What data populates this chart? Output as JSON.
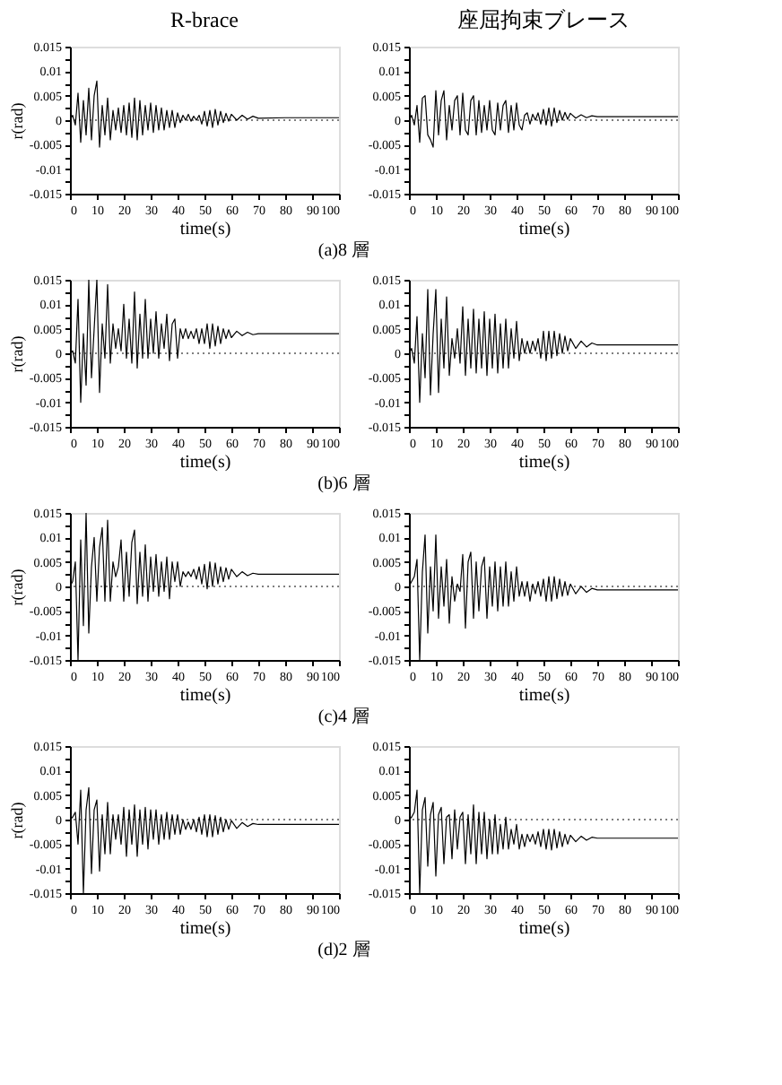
{
  "chart_data": [
    {
      "type": "line",
      "title": "R-brace",
      "xlabel": "time(s)",
      "ylabel": "r(rad)",
      "annotations": [
        "(a)8 層"
      ],
      "x": [
        0,
        1,
        2,
        3,
        4,
        5,
        6,
        7,
        8,
        9,
        10,
        11,
        12,
        13,
        14,
        15,
        16,
        17,
        18,
        19,
        20,
        21,
        22,
        23,
        24,
        25,
        26,
        27,
        28,
        29,
        30,
        31,
        32,
        33,
        34,
        35,
        36,
        37,
        38,
        39,
        40,
        41,
        42,
        43,
        44,
        45,
        46,
        47,
        48,
        49,
        50,
        51,
        52,
        53,
        54,
        55,
        56,
        57,
        58,
        59,
        60,
        62,
        64,
        66,
        68,
        70,
        80,
        90,
        100
      ],
      "series": [
        {
          "color": "#000000",
          "values": [
            0,
            0.001,
            -0.001,
            0.0055,
            -0.0045,
            0.004,
            -0.003,
            0.0065,
            -0.004,
            0.005,
            0.008,
            -0.0055,
            0.003,
            -0.003,
            0.0045,
            -0.004,
            0.002,
            -0.002,
            0.0025,
            -0.0025,
            0.003,
            -0.003,
            0.0035,
            -0.0035,
            0.0045,
            -0.004,
            0.004,
            -0.003,
            0.003,
            -0.002,
            0.0035,
            -0.0025,
            0.003,
            -0.002,
            0.0025,
            -0.002,
            0.002,
            -0.0015,
            0.002,
            -0.0015,
            0.0015,
            -0.0005,
            0.001,
            0,
            0.0012,
            -0.0002,
            0.0008,
            0,
            0.001,
            -0.0008,
            0.0018,
            -0.0012,
            0.002,
            -0.0015,
            0.0022,
            -0.001,
            0.0018,
            -0.0005,
            0.0014,
            -0.0002,
            0.0012,
            0,
            0.001,
            0.0002,
            0.0008,
            0.0004,
            0.0005,
            0.0005,
            0.0005
          ]
        }
      ],
      "xlim": [
        0,
        100
      ],
      "ylim": [
        -0.015,
        0.015
      ],
      "xticks": [
        0,
        10,
        20,
        30,
        40,
        50,
        60,
        70,
        80,
        90,
        100
      ],
      "yticks": [
        -0.015,
        {
          "value": -0.0125,
          "label": null
        },
        -0.01,
        {
          "value": -0.0075,
          "label": null
        },
        -0.005,
        {
          "value": -0.0025,
          "label": null
        },
        0,
        {
          "value": 0.0025,
          "label": null
        },
        0.005,
        {
          "value": 0.0075,
          "label": null
        },
        0.01,
        {
          "value": 0.0125,
          "label": null
        },
        0.015
      ],
      "ref_lines": [
        {
          "axis": "y",
          "value": 0,
          "line_style": "dotted"
        }
      ]
    },
    {
      "type": "line",
      "title": "座屈拘束ブレース",
      "xlabel": "time(s)",
      "x": [
        0,
        1,
        2,
        3,
        4,
        5,
        6,
        7,
        8,
        9,
        10,
        11,
        12,
        13,
        14,
        15,
        16,
        17,
        18,
        19,
        20,
        21,
        22,
        23,
        24,
        25,
        26,
        27,
        28,
        29,
        30,
        31,
        32,
        33,
        34,
        35,
        36,
        37,
        38,
        39,
        40,
        41,
        42,
        43,
        44,
        45,
        46,
        47,
        48,
        49,
        50,
        51,
        52,
        53,
        54,
        55,
        56,
        57,
        58,
        59,
        60,
        62,
        64,
        66,
        68,
        70,
        80,
        90,
        100
      ],
      "series": [
        {
          "color": "#000000",
          "values": [
            0,
            0.001,
            -0.001,
            0.003,
            -0.0045,
            0.0045,
            0.005,
            -0.003,
            -0.004,
            -0.0055,
            0.006,
            -0.003,
            0.004,
            0.006,
            -0.004,
            0.003,
            -0.002,
            0.004,
            0.005,
            -0.003,
            0.0055,
            -0.002,
            -0.003,
            0.004,
            0.005,
            -0.003,
            0.004,
            -0.0025,
            0.003,
            -0.002,
            0.004,
            -0.002,
            -0.003,
            0.0035,
            -0.002,
            0.003,
            0.004,
            -0.0025,
            0.003,
            -0.002,
            0.0035,
            -0.001,
            -0.002,
            0.001,
            0.0015,
            -0.0008,
            0.0012,
            0,
            0.0015,
            -0.0008,
            0.0022,
            -0.001,
            0.0025,
            -0.0012,
            0.0025,
            -0.0005,
            0.002,
            0,
            0.0016,
            0.0002,
            0.0014,
            0.0004,
            0.0011,
            0.0005,
            0.0009,
            0.0007,
            0.0007,
            0.0007,
            0.0007
          ]
        }
      ],
      "xlim": [
        0,
        100
      ],
      "ylim": [
        -0.015,
        0.015
      ],
      "xticks": [
        0,
        10,
        20,
        30,
        40,
        50,
        60,
        70,
        80,
        90,
        100
      ],
      "yticks": [
        -0.015,
        {
          "value": -0.0125,
          "label": null
        },
        -0.01,
        {
          "value": -0.0075,
          "label": null
        },
        -0.005,
        {
          "value": -0.0025,
          "label": null
        },
        0,
        {
          "value": 0.0025,
          "label": null
        },
        0.005,
        {
          "value": 0.0075,
          "label": null
        },
        0.01,
        {
          "value": 0.0125,
          "label": null
        },
        0.015
      ],
      "ref_lines": [
        {
          "axis": "y",
          "value": 0,
          "line_style": "dotted"
        }
      ]
    },
    {
      "type": "line",
      "xlabel": "time(s)",
      "ylabel": "r(rad)",
      "annotations": [
        "(b)6 層"
      ],
      "x": [
        0,
        1,
        2,
        3,
        4,
        5,
        6,
        7,
        8,
        9,
        10,
        11,
        12,
        13,
        14,
        15,
        16,
        17,
        18,
        19,
        20,
        21,
        22,
        23,
        24,
        25,
        26,
        27,
        28,
        29,
        30,
        31,
        32,
        33,
        34,
        35,
        36,
        37,
        38,
        39,
        40,
        41,
        42,
        43,
        44,
        45,
        46,
        47,
        48,
        49,
        50,
        51,
        52,
        53,
        54,
        55,
        56,
        57,
        58,
        59,
        60,
        62,
        64,
        66,
        68,
        70,
        80,
        90,
        100
      ],
      "series": [
        {
          "color": "#000000",
          "values": [
            0,
            0.0005,
            -0.002,
            0.011,
            -0.01,
            0.004,
            -0.0065,
            0.015,
            -0.005,
            0.005,
            0.015,
            -0.008,
            0.006,
            -0.001,
            0.014,
            -0.002,
            0.006,
            0.001,
            0.005,
            0.0005,
            0.01,
            -0.001,
            0.007,
            -0.002,
            0.0125,
            -0.003,
            0.008,
            -0.001,
            0.011,
            -0.001,
            0.007,
            0,
            0.0085,
            -0.001,
            0.006,
            0.001,
            0.008,
            -0.0015,
            0.006,
            0.007,
            -0.001,
            0.005,
            0.003,
            0.005,
            0.003,
            0.0045,
            0.003,
            0.005,
            0.002,
            0.005,
            0.002,
            0.006,
            0.001,
            0.006,
            0.0015,
            0.0055,
            0.002,
            0.005,
            0.003,
            0.0048,
            0.0032,
            0.0045,
            0.0036,
            0.0043,
            0.0038,
            0.004,
            0.004,
            0.004,
            0.004
          ]
        }
      ],
      "xlim": [
        0,
        100
      ],
      "ylim": [
        -0.015,
        0.015
      ],
      "xticks": [
        0,
        10,
        20,
        30,
        40,
        50,
        60,
        70,
        80,
        90,
        100
      ],
      "yticks": [
        -0.015,
        {
          "value": -0.0125,
          "label": null
        },
        -0.01,
        {
          "value": -0.0075,
          "label": null
        },
        -0.005,
        {
          "value": -0.0025,
          "label": null
        },
        0,
        {
          "value": 0.0025,
          "label": null
        },
        0.005,
        {
          "value": 0.0075,
          "label": null
        },
        0.01,
        {
          "value": 0.0125,
          "label": null
        },
        0.015
      ],
      "ref_lines": [
        {
          "axis": "y",
          "value": 0,
          "line_style": "dotted"
        }
      ]
    },
    {
      "type": "line",
      "xlabel": "time(s)",
      "x": [
        0,
        1,
        2,
        3,
        4,
        5,
        6,
        7,
        8,
        9,
        10,
        11,
        12,
        13,
        14,
        15,
        16,
        17,
        18,
        19,
        20,
        21,
        22,
        23,
        24,
        25,
        26,
        27,
        28,
        29,
        30,
        31,
        32,
        33,
        34,
        35,
        36,
        37,
        38,
        39,
        40,
        41,
        42,
        43,
        44,
        45,
        46,
        47,
        48,
        49,
        50,
        51,
        52,
        53,
        54,
        55,
        56,
        57,
        58,
        59,
        60,
        62,
        64,
        66,
        68,
        70,
        80,
        90,
        100
      ],
      "series": [
        {
          "color": "#000000",
          "values": [
            0,
            0.001,
            -0.002,
            0.0075,
            -0.01,
            0.004,
            -0.005,
            0.013,
            -0.0085,
            0.004,
            0.013,
            -0.008,
            0.007,
            -0.003,
            0.0115,
            -0.0045,
            0.003,
            -0.001,
            0.005,
            -0.002,
            0.0095,
            -0.0045,
            0.007,
            -0.003,
            0.009,
            -0.004,
            0.007,
            -0.003,
            0.0085,
            -0.0045,
            0.007,
            -0.003,
            0.008,
            -0.004,
            0.006,
            -0.003,
            0.007,
            -0.003,
            0.005,
            -0.001,
            0.0065,
            -0.0015,
            0.003,
            0,
            0.0025,
            0,
            0.0025,
            0.0005,
            0.003,
            -0.001,
            0.0045,
            -0.0015,
            0.0045,
            -0.001,
            0.0045,
            -0.0005,
            0.004,
            0,
            0.0035,
            0.0005,
            0.003,
            0.001,
            0.0025,
            0.0013,
            0.0021,
            0.0017,
            0.0017,
            0.0017,
            0.0017
          ]
        }
      ],
      "xlim": [
        0,
        100
      ],
      "ylim": [
        -0.015,
        0.015
      ],
      "xticks": [
        0,
        10,
        20,
        30,
        40,
        50,
        60,
        70,
        80,
        90,
        100
      ],
      "yticks": [
        -0.015,
        {
          "value": -0.0125,
          "label": null
        },
        -0.01,
        {
          "value": -0.0075,
          "label": null
        },
        -0.005,
        {
          "value": -0.0025,
          "label": null
        },
        0,
        {
          "value": 0.0025,
          "label": null
        },
        0.005,
        {
          "value": 0.0075,
          "label": null
        },
        0.01,
        {
          "value": 0.0125,
          "label": null
        },
        0.015
      ],
      "ref_lines": [
        {
          "axis": "y",
          "value": 0,
          "line_style": "dotted"
        }
      ]
    },
    {
      "type": "line",
      "xlabel": "time(s)",
      "ylabel": "r(rad)",
      "annotations": [
        "(c)4 層"
      ],
      "x": [
        0,
        1,
        2,
        3,
        4,
        5,
        6,
        7,
        8,
        9,
        10,
        11,
        12,
        13,
        14,
        15,
        16,
        17,
        18,
        19,
        20,
        21,
        22,
        23,
        24,
        25,
        26,
        27,
        28,
        29,
        30,
        31,
        32,
        33,
        34,
        35,
        36,
        37,
        38,
        39,
        40,
        41,
        42,
        43,
        44,
        45,
        46,
        47,
        48,
        49,
        50,
        51,
        52,
        53,
        54,
        55,
        56,
        57,
        58,
        59,
        60,
        62,
        64,
        66,
        68,
        70,
        80,
        90,
        100
      ],
      "series": [
        {
          "color": "#000000",
          "values": [
            0,
            0.001,
            0.005,
            -0.015,
            0.0095,
            -0.008,
            0.015,
            -0.0095,
            0.004,
            0.01,
            -0.003,
            0.008,
            0.012,
            -0.003,
            0.0135,
            -0.003,
            0.005,
            0.002,
            0.004,
            0.0095,
            -0.003,
            0.007,
            -0.002,
            0.009,
            0.0115,
            -0.0035,
            0.007,
            -0.002,
            0.0085,
            -0.003,
            0.006,
            -0.001,
            0.0065,
            -0.002,
            0.005,
            -0.001,
            0.006,
            -0.0025,
            0.005,
            0.001,
            0.005,
            0,
            0.003,
            0.002,
            0.003,
            0.002,
            0.0035,
            0.0015,
            0.004,
            0.0005,
            0.0045,
            -0.0005,
            0.005,
            0,
            0.0048,
            0.0005,
            0.004,
            0.001,
            0.0038,
            0.0015,
            0.0035,
            0.002,
            0.003,
            0.0022,
            0.0027,
            0.0025,
            0.0025,
            0.0025,
            0.0025
          ]
        }
      ],
      "xlim": [
        0,
        100
      ],
      "ylim": [
        -0.015,
        0.015
      ],
      "xticks": [
        0,
        10,
        20,
        30,
        40,
        50,
        60,
        70,
        80,
        90,
        100
      ],
      "yticks": [
        -0.015,
        {
          "value": -0.0125,
          "label": null
        },
        -0.01,
        {
          "value": -0.0075,
          "label": null
        },
        -0.005,
        {
          "value": -0.0025,
          "label": null
        },
        0,
        {
          "value": 0.0025,
          "label": null
        },
        0.005,
        {
          "value": 0.0075,
          "label": null
        },
        0.01,
        {
          "value": 0.0125,
          "label": null
        },
        0.015
      ],
      "ref_lines": [
        {
          "axis": "y",
          "value": 0,
          "line_style": "dotted"
        }
      ]
    },
    {
      "type": "line",
      "xlabel": "time(s)",
      "x": [
        0,
        1,
        2,
        3,
        4,
        5,
        6,
        7,
        8,
        9,
        10,
        11,
        12,
        13,
        14,
        15,
        16,
        17,
        18,
        19,
        20,
        21,
        22,
        23,
        24,
        25,
        26,
        27,
        28,
        29,
        30,
        31,
        32,
        33,
        34,
        35,
        36,
        37,
        38,
        39,
        40,
        41,
        42,
        43,
        44,
        45,
        46,
        47,
        48,
        49,
        50,
        51,
        52,
        53,
        54,
        55,
        56,
        57,
        58,
        59,
        60,
        62,
        64,
        66,
        68,
        70,
        80,
        90,
        100
      ],
      "series": [
        {
          "color": "#000000",
          "values": [
            0,
            0.001,
            0.002,
            0.0055,
            -0.015,
            0.003,
            0.0105,
            -0.0095,
            0.004,
            -0.005,
            0.0105,
            -0.0065,
            0.004,
            -0.004,
            0.0055,
            -0.0075,
            0.002,
            -0.003,
            0.0005,
            -0.001,
            0.0065,
            -0.0085,
            0.005,
            0.007,
            -0.0065,
            0.005,
            -0.005,
            0.004,
            0.006,
            -0.0065,
            0.004,
            -0.004,
            0.005,
            -0.005,
            0.004,
            -0.004,
            0.005,
            -0.004,
            0.003,
            -0.003,
            0.004,
            -0.002,
            0.001,
            -0.002,
            0.001,
            -0.003,
            0.0005,
            -0.0015,
            0.001,
            -0.002,
            0.0015,
            -0.003,
            0.002,
            -0.003,
            0.002,
            -0.0025,
            0.0015,
            -0.002,
            0.001,
            -0.0018,
            0.0005,
            -0.0015,
            0,
            -0.0012,
            -0.0004,
            -0.0007,
            -0.0007,
            -0.0007,
            -0.0007
          ]
        }
      ],
      "xlim": [
        0,
        100
      ],
      "ylim": [
        -0.015,
        0.015
      ],
      "xticks": [
        0,
        10,
        20,
        30,
        40,
        50,
        60,
        70,
        80,
        90,
        100
      ],
      "yticks": [
        -0.015,
        {
          "value": -0.0125,
          "label": null
        },
        -0.01,
        {
          "value": -0.0075,
          "label": null
        },
        -0.005,
        {
          "value": -0.0025,
          "label": null
        },
        0,
        {
          "value": 0.0025,
          "label": null
        },
        0.005,
        {
          "value": 0.0075,
          "label": null
        },
        0.01,
        {
          "value": 0.0125,
          "label": null
        },
        0.015
      ],
      "ref_lines": [
        {
          "axis": "y",
          "value": 0,
          "line_style": "dotted"
        }
      ]
    },
    {
      "type": "line",
      "xlabel": "time(s)",
      "ylabel": "r(rad)",
      "annotations": [
        "(d)2 層"
      ],
      "x": [
        0,
        1,
        2,
        3,
        4,
        5,
        6,
        7,
        8,
        9,
        10,
        11,
        12,
        13,
        14,
        15,
        16,
        17,
        18,
        19,
        20,
        21,
        22,
        23,
        24,
        25,
        26,
        27,
        28,
        29,
        30,
        31,
        32,
        33,
        34,
        35,
        36,
        37,
        38,
        39,
        40,
        41,
        42,
        43,
        44,
        45,
        46,
        47,
        48,
        49,
        50,
        51,
        52,
        53,
        54,
        55,
        56,
        57,
        58,
        59,
        60,
        62,
        64,
        66,
        68,
        70,
        80,
        90,
        100
      ],
      "series": [
        {
          "color": "#000000",
          "values": [
            0,
            0.0005,
            0.0015,
            -0.005,
            0.006,
            -0.015,
            0.002,
            0.0065,
            -0.011,
            0.002,
            0.004,
            -0.0105,
            0.001,
            -0.007,
            0.0035,
            -0.007,
            0.001,
            -0.004,
            0.001,
            -0.005,
            0.0025,
            -0.0075,
            0.002,
            -0.005,
            0.003,
            -0.0075,
            0.002,
            -0.005,
            0.0025,
            -0.006,
            0.002,
            -0.004,
            0.002,
            -0.005,
            0.001,
            -0.004,
            0.0015,
            -0.004,
            0.001,
            -0.003,
            0.001,
            -0.003,
            0,
            -0.002,
            -0.0005,
            -0.002,
            0,
            -0.0025,
            0.0005,
            -0.003,
            0.001,
            -0.0035,
            0.001,
            -0.0035,
            0.0008,
            -0.003,
            0.0005,
            -0.0025,
            0,
            -0.002,
            -0.0002,
            -0.0018,
            -0.0006,
            -0.0014,
            -0.0008,
            -0.001,
            -0.001,
            -0.001,
            -0.001
          ]
        }
      ],
      "xlim": [
        0,
        100
      ],
      "ylim": [
        -0.015,
        0.015
      ],
      "xticks": [
        0,
        10,
        20,
        30,
        40,
        50,
        60,
        70,
        80,
        90,
        100
      ],
      "yticks": [
        -0.015,
        {
          "value": -0.0125,
          "label": null
        },
        -0.01,
        {
          "value": -0.0075,
          "label": null
        },
        -0.005,
        {
          "value": -0.0025,
          "label": null
        },
        0,
        {
          "value": 0.0025,
          "label": null
        },
        0.005,
        {
          "value": 0.0075,
          "label": null
        },
        0.01,
        {
          "value": 0.0125,
          "label": null
        },
        0.015
      ],
      "ref_lines": [
        {
          "axis": "y",
          "value": 0,
          "line_style": "dotted"
        }
      ]
    },
    {
      "type": "line",
      "xlabel": "time(s)",
      "x": [
        0,
        1,
        2,
        3,
        4,
        5,
        6,
        7,
        8,
        9,
        10,
        11,
        12,
        13,
        14,
        15,
        16,
        17,
        18,
        19,
        20,
        21,
        22,
        23,
        24,
        25,
        26,
        27,
        28,
        29,
        30,
        31,
        32,
        33,
        34,
        35,
        36,
        37,
        38,
        39,
        40,
        41,
        42,
        43,
        44,
        45,
        46,
        47,
        48,
        49,
        50,
        51,
        52,
        53,
        54,
        55,
        56,
        57,
        58,
        59,
        60,
        62,
        64,
        66,
        68,
        70,
        80,
        90,
        100
      ],
      "series": [
        {
          "color": "#000000",
          "values": [
            0,
            0.0005,
            0.0015,
            0.006,
            -0.015,
            0.002,
            0.0045,
            -0.0095,
            0.001,
            0.0035,
            -0.0115,
            0.001,
            0.0025,
            -0.009,
            0.0005,
            0.001,
            -0.008,
            0.002,
            -0.006,
            0.0005,
            0.0015,
            -0.009,
            0.001,
            -0.007,
            0.003,
            -0.009,
            0.0015,
            -0.007,
            0.0015,
            -0.008,
            0,
            -0.007,
            0.001,
            -0.007,
            -0.001,
            -0.006,
            0.0005,
            -0.006,
            -0.002,
            -0.005,
            -0.001,
            -0.006,
            -0.003,
            -0.0055,
            -0.003,
            -0.0045,
            -0.003,
            -0.005,
            -0.0025,
            -0.0055,
            -0.002,
            -0.006,
            -0.002,
            -0.0062,
            -0.002,
            -0.0058,
            -0.0025,
            -0.0055,
            -0.003,
            -0.005,
            -0.0032,
            -0.0045,
            -0.0034,
            -0.0042,
            -0.0036,
            -0.0038,
            -0.0038,
            -0.0038,
            -0.0038
          ]
        }
      ],
      "xlim": [
        0,
        100
      ],
      "ylim": [
        -0.015,
        0.015
      ],
      "xticks": [
        0,
        10,
        20,
        30,
        40,
        50,
        60,
        70,
        80,
        90,
        100
      ],
      "yticks": [
        -0.015,
        {
          "value": -0.0125,
          "label": null
        },
        -0.01,
        {
          "value": -0.0075,
          "label": null
        },
        -0.005,
        {
          "value": -0.0025,
          "label": null
        },
        0,
        {
          "value": 0.0025,
          "label": null
        },
        0.005,
        {
          "value": 0.0075,
          "label": null
        },
        0.01,
        {
          "value": 0.0125,
          "label": null
        },
        0.015
      ],
      "ref_lines": [
        {
          "axis": "y",
          "value": 0,
          "line_style": "dotted"
        }
      ]
    }
  ]
}
